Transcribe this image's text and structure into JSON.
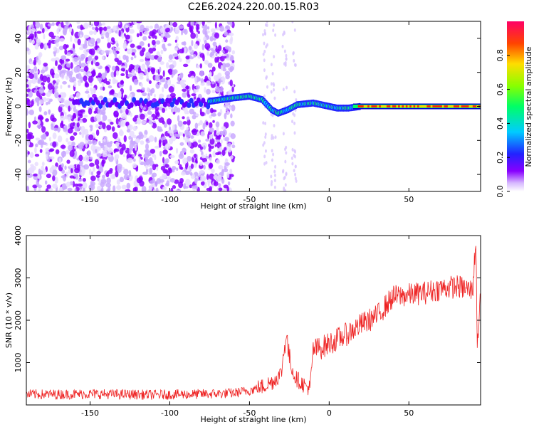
{
  "title": "C2E6.2024.220.00.15.R03",
  "chart_data": [
    {
      "type": "heatmap",
      "xlabel": "Height of straight line (km)",
      "ylabel": "Frequency (Hz)",
      "xlim": [
        -190,
        95
      ],
      "ylim": [
        -50,
        50
      ],
      "xticks": [
        -150,
        -100,
        -50,
        0,
        50
      ],
      "yticks": [
        -40,
        -20,
        0,
        20,
        40
      ],
      "colorbar": {
        "label": "Normalized spectral amplitude",
        "range": [
          0.0,
          1.0
        ],
        "ticks": [
          0.0,
          0.2,
          0.4,
          0.6,
          0.8
        ]
      },
      "centerline": [
        {
          "x": -75,
          "y": 3
        },
        {
          "x": -60,
          "y": 5
        },
        {
          "x": -50,
          "y": 6
        },
        {
          "x": -42,
          "y": 4
        },
        {
          "x": -36,
          "y": -2
        },
        {
          "x": -32,
          "y": -4
        },
        {
          "x": -26,
          "y": -2
        },
        {
          "x": -20,
          "y": 1
        },
        {
          "x": -10,
          "y": 2
        },
        {
          "x": -5,
          "y": 1
        },
        {
          "x": 0,
          "y": 0
        },
        {
          "x": 5,
          "y": -1
        },
        {
          "x": 12,
          "y": -1
        },
        {
          "x": 20,
          "y": 0
        },
        {
          "x": 95,
          "y": 0
        }
      ]
    },
    {
      "type": "line",
      "xlabel": "Height of straight line (km)",
      "ylabel": "SNR (10 * v/v)",
      "xlim": [
        -190,
        95
      ],
      "ylim": [
        0,
        4000
      ],
      "xticks": [
        -150,
        -100,
        -50,
        0,
        50
      ],
      "yticks": [
        1000,
        2000,
        3000,
        4000
      ],
      "color": "#ee2222",
      "series": [
        {
          "x": [
            -190,
            -170,
            -150,
            -130,
            -110,
            -90,
            -75,
            -60,
            -50,
            -42,
            -35,
            -30,
            -27,
            -25,
            -22,
            -20,
            -15,
            -12,
            -10,
            -5,
            0,
            10,
            20,
            30,
            40,
            50,
            60,
            70,
            80,
            90,
            92,
            93,
            95
          ],
          "values": [
            250,
            250,
            260,
            250,
            240,
            250,
            260,
            280,
            340,
            430,
            560,
            750,
            1700,
            1100,
            700,
            600,
            450,
            400,
            1300,
            1350,
            1450,
            1650,
            1900,
            2100,
            2550,
            2600,
            2650,
            2750,
            2800,
            2700,
            3900,
            1300,
            2900
          ]
        }
      ]
    }
  ]
}
